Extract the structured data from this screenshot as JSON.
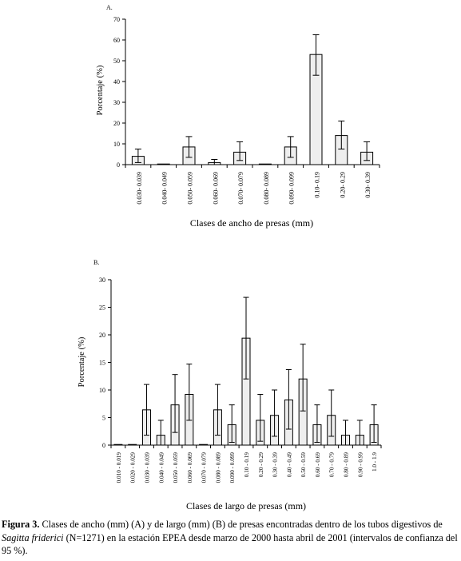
{
  "chart_data": [
    {
      "panel_label": "A.",
      "type": "bar",
      "ylabel": "Porcentaje (%)",
      "xlabel": "Clases de ancho de presas (mm)",
      "ylim": [
        0,
        70
      ],
      "yticks": [
        0,
        10,
        20,
        30,
        40,
        50,
        60,
        70
      ],
      "categories": [
        "0.030- 0.039",
        "0.040- 0.049",
        "0.050- 0.059",
        "0.060- 0.069",
        "0.070- 0.079",
        "0.080- 0.089",
        "0.090- 0.099",
        "0.10- 0.19",
        "0.20- 0.29",
        "0.30- 0.39"
      ],
      "values": [
        4,
        0,
        8.5,
        1,
        6,
        0,
        8.5,
        53,
        14,
        6
      ],
      "ci_low": [
        1,
        0,
        3.5,
        0,
        2,
        0,
        3.5,
        43,
        7.5,
        2
      ],
      "ci_high": [
        7.5,
        0,
        13.5,
        2.5,
        11,
        0,
        13.5,
        62.5,
        21,
        11
      ],
      "bar_color": "#eeeeee",
      "grid": false
    },
    {
      "panel_label": "B.",
      "type": "bar",
      "ylabel": "Porcentaje (%)",
      "xlabel": "Clases de largo de presas (mm)",
      "ylim": [
        0,
        30
      ],
      "yticks": [
        0,
        5,
        10,
        15,
        20,
        25,
        30
      ],
      "categories": [
        "0.010 - 0.019",
        "0.020 - 0.029",
        "0.030 - 0.039",
        "0.040 - 0.049",
        "0.050 - 0.059",
        "0.060 - 0.069",
        "0.070 - 0.079",
        "0.080 - 0.089",
        "0.090 - 0.099",
        "0.10 - 0.19",
        "0.20 - 0.29",
        "0.30 - 0.39",
        "0.40 - 0.49",
        "0.50 - 0.59",
        "0.60 - 0.69",
        "0.70 - 0.79",
        "0.80 - 0.89",
        "0.90 - 0.99",
        "1.0 - 1.9"
      ],
      "values": [
        0,
        0,
        6.4,
        1.8,
        7.3,
        9.2,
        0,
        6.4,
        3.7,
        19.4,
        4.5,
        5.4,
        8.2,
        12,
        3.7,
        5.4,
        1.8,
        1.8,
        3.7
      ],
      "ci_low": [
        0,
        0,
        1.8,
        0,
        2.3,
        4.5,
        0,
        1.8,
        0.5,
        12,
        0.7,
        1.6,
        2.9,
        6.2,
        0.5,
        1.6,
        0,
        0,
        0.5
      ],
      "ci_high": [
        0,
        0,
        11,
        4.5,
        12.8,
        14.7,
        0,
        11,
        7.3,
        26.8,
        9.2,
        10,
        13.7,
        18.3,
        7.3,
        10,
        4.5,
        4.5,
        7.3
      ],
      "bar_color": "#eeeeee",
      "grid": false
    }
  ],
  "caption": {
    "label": "Figura 3.",
    "text_1": " Clases de ancho (mm)  (A) y  de largo (mm) (B)  de presas encontradas dentro de los tubos digestivos de ",
    "species": "Sagitta friderici",
    "text_2": "  (N=1271) en la estación EPEA desde marzo de 2000 hasta abril de 2001 (intervalos de confianza del 95 %)."
  }
}
